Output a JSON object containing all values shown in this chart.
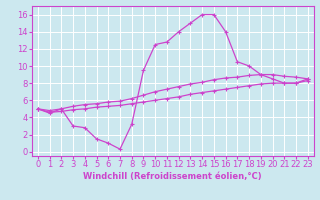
{
  "background_color": "#cce8ef",
  "grid_color": "#ffffff",
  "line_color": "#cc44cc",
  "xlabel": "Windchill (Refroidissement éolien,°C)",
  "xlabel_fontsize": 6.0,
  "xlim": [
    -0.5,
    23.5
  ],
  "ylim": [
    -0.5,
    17
  ],
  "xticks": [
    0,
    1,
    2,
    3,
    4,
    5,
    6,
    7,
    8,
    9,
    10,
    11,
    12,
    13,
    14,
    15,
    16,
    17,
    18,
    19,
    20,
    21,
    22,
    23
  ],
  "yticks": [
    0,
    2,
    4,
    6,
    8,
    10,
    12,
    14,
    16
  ],
  "tick_fontsize": 6.0,
  "line1_x": [
    0,
    1,
    2,
    3,
    4,
    5,
    6,
    7,
    8,
    9,
    10,
    11,
    12,
    13,
    14,
    15,
    16,
    17,
    18,
    19,
    20,
    21,
    22,
    23
  ],
  "line1_y": [
    5.0,
    4.5,
    5.0,
    3.0,
    2.8,
    1.5,
    1.0,
    0.3,
    3.2,
    9.5,
    12.5,
    12.8,
    14.0,
    15.0,
    16.0,
    16.0,
    14.0,
    10.5,
    10.0,
    9.0,
    8.5,
    8.0,
    8.0,
    8.5
  ],
  "line2_x": [
    0,
    1,
    2,
    3,
    4,
    5,
    6,
    7,
    8,
    9,
    10,
    11,
    12,
    13,
    14,
    15,
    16,
    17,
    18,
    19,
    20,
    21,
    22,
    23
  ],
  "line2_y": [
    5.0,
    4.8,
    5.0,
    5.3,
    5.5,
    5.6,
    5.8,
    5.9,
    6.2,
    6.6,
    7.0,
    7.3,
    7.6,
    7.9,
    8.1,
    8.4,
    8.6,
    8.7,
    8.9,
    9.0,
    9.0,
    8.8,
    8.7,
    8.5
  ],
  "line3_x": [
    0,
    1,
    2,
    3,
    4,
    5,
    6,
    7,
    8,
    9,
    10,
    11,
    12,
    13,
    14,
    15,
    16,
    17,
    18,
    19,
    20,
    21,
    22,
    23
  ],
  "line3_y": [
    5.0,
    4.6,
    4.7,
    4.9,
    5.0,
    5.2,
    5.3,
    5.4,
    5.6,
    5.8,
    6.0,
    6.2,
    6.4,
    6.7,
    6.9,
    7.1,
    7.3,
    7.5,
    7.7,
    7.9,
    8.0,
    8.0,
    8.0,
    8.3
  ]
}
